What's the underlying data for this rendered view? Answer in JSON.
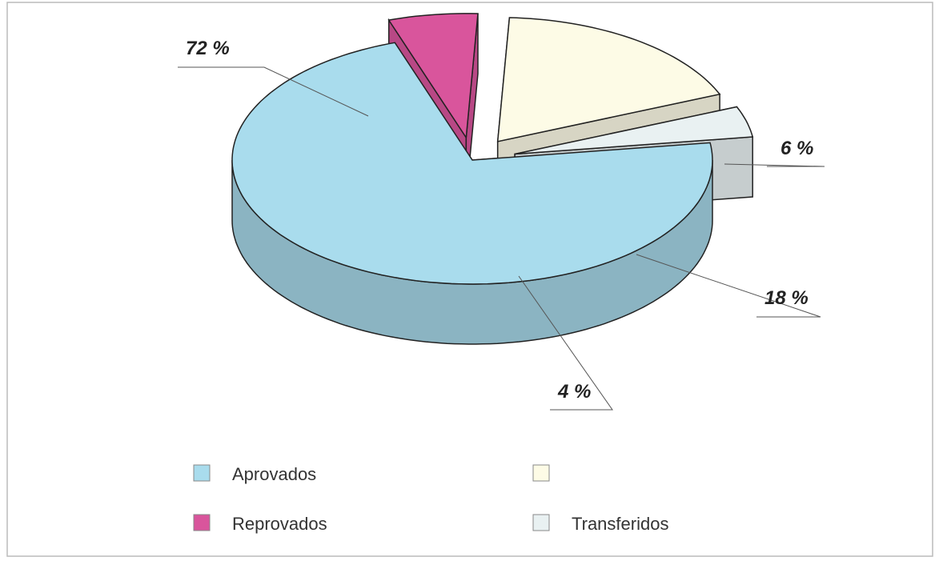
{
  "chart_data": {
    "type": "pie",
    "categories": [
      "Aprovados",
      "Reprovados",
      null,
      "Transferidos"
    ],
    "values": [
      72,
      6,
      18,
      4
    ],
    "value_labels": [
      "72 %",
      "6 %",
      "18 %",
      "4 %"
    ],
    "colors": [
      "#a9dced",
      "#d9559c",
      "#fdfbe6",
      "#e9f1f2"
    ]
  }
}
